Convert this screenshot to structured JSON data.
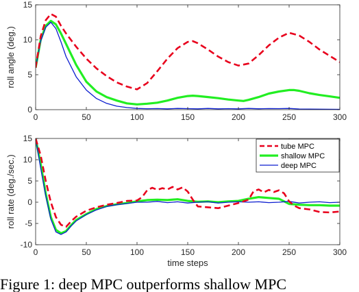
{
  "caption": "Figure 1: deep MPC outperforms shallow MPC",
  "colors": {
    "tube": "#e8001c",
    "shallow": "#22ee22",
    "deep": "#0a1ccf",
    "axis": "#262626"
  },
  "chart_data": [
    {
      "type": "line",
      "xlabel": "",
      "ylabel": "roll angle (deg.)",
      "xlim": [
        0,
        300
      ],
      "ylim": [
        0,
        15
      ],
      "xticks": [
        0,
        50,
        100,
        150,
        200,
        250,
        300
      ],
      "yticks": [
        0,
        5,
        10,
        15
      ],
      "grid": false,
      "series": [
        {
          "name": "tube MPC",
          "style": "dashed",
          "x": [
            0,
            5,
            10,
            15,
            20,
            25,
            30,
            40,
            50,
            60,
            70,
            80,
            90,
            100,
            110,
            120,
            130,
            140,
            150,
            155,
            160,
            170,
            180,
            190,
            200,
            210,
            220,
            230,
            240,
            250,
            260,
            270,
            280,
            290,
            300
          ],
          "y": [
            6.0,
            10.5,
            12.8,
            13.7,
            13.3,
            12.0,
            10.9,
            9.0,
            7.3,
            5.9,
            4.8,
            3.9,
            3.3,
            2.9,
            3.8,
            5.5,
            7.3,
            8.8,
            9.7,
            9.8,
            9.5,
            8.6,
            7.6,
            6.8,
            6.3,
            6.6,
            7.8,
            9.2,
            10.3,
            11.0,
            10.6,
            9.7,
            8.6,
            7.7,
            6.8
          ]
        },
        {
          "name": "shallow MPC",
          "style": "thick",
          "x": [
            0,
            5,
            10,
            15,
            20,
            25,
            30,
            40,
            50,
            60,
            70,
            80,
            90,
            100,
            110,
            120,
            130,
            140,
            150,
            155,
            160,
            170,
            180,
            190,
            200,
            205,
            210,
            220,
            230,
            240,
            250,
            255,
            260,
            270,
            280,
            290,
            300
          ],
          "y": [
            6.0,
            10.0,
            12.0,
            12.7,
            12.2,
            10.9,
            9.4,
            6.4,
            4.0,
            2.6,
            1.8,
            1.3,
            0.9,
            0.75,
            0.85,
            1.0,
            1.3,
            1.7,
            1.95,
            2.0,
            1.95,
            1.8,
            1.65,
            1.45,
            1.3,
            1.25,
            1.4,
            1.8,
            2.3,
            2.6,
            2.8,
            2.8,
            2.7,
            2.35,
            2.1,
            1.9,
            1.7
          ]
        },
        {
          "name": "deep MPC",
          "style": "solid",
          "x": [
            0,
            5,
            10,
            15,
            20,
            25,
            30,
            40,
            50,
            60,
            70,
            80,
            90,
            100,
            110,
            120,
            130,
            140,
            150,
            160,
            170,
            180,
            190,
            200,
            210,
            220,
            230,
            240,
            250,
            260,
            270,
            280,
            290,
            300
          ],
          "y": [
            6.0,
            9.8,
            11.8,
            12.5,
            11.6,
            9.7,
            7.6,
            4.7,
            2.8,
            1.6,
            0.9,
            0.5,
            0.3,
            0.18,
            0.14,
            0.16,
            0.12,
            0.18,
            0.15,
            0.12,
            0.18,
            0.12,
            0.15,
            0.12,
            0.18,
            0.13,
            0.16,
            0.15,
            0.18,
            0.1,
            0.08,
            0.07,
            0.06,
            0.05
          ]
        }
      ]
    },
    {
      "type": "line",
      "xlabel": "time steps",
      "ylabel": "roll rate (deg./sec.)",
      "xlim": [
        0,
        300
      ],
      "ylim": [
        -10,
        15
      ],
      "xticks": [
        0,
        50,
        100,
        150,
        200,
        250,
        300
      ],
      "yticks": [
        -10,
        -5,
        0,
        5,
        10,
        15
      ],
      "grid": false,
      "legend": "top-right",
      "series": [
        {
          "name": "tube MPC",
          "style": "dashed",
          "x": [
            0,
            5,
            10,
            15,
            20,
            25,
            30,
            35,
            40,
            50,
            60,
            70,
            80,
            90,
            100,
            105,
            110,
            115,
            120,
            125,
            130,
            135,
            140,
            145,
            150,
            155,
            160,
            170,
            180,
            190,
            200,
            210,
            215,
            220,
            225,
            230,
            235,
            240,
            245,
            250,
            255,
            260,
            270,
            280,
            290,
            300
          ],
          "y": [
            15,
            11,
            5,
            0,
            -3.5,
            -5.3,
            -5.8,
            -4.5,
            -3.4,
            -2.0,
            -1.2,
            -0.6,
            -0.2,
            0.3,
            0.4,
            1.2,
            2.8,
            3.4,
            2.9,
            3.3,
            3.0,
            3.6,
            3.0,
            3.5,
            2.5,
            0.6,
            -1.0,
            -1.2,
            -1.4,
            -0.8,
            -0.2,
            0.6,
            2.6,
            3.0,
            2.3,
            2.9,
            2.4,
            2.8,
            2.1,
            0.2,
            -0.8,
            -1.4,
            -1.7,
            -2.3,
            -2.4,
            -2.2
          ]
        },
        {
          "name": "shallow MPC",
          "style": "thick",
          "x": [
            0,
            5,
            10,
            15,
            20,
            25,
            30,
            35,
            40,
            50,
            60,
            70,
            80,
            90,
            100,
            110,
            120,
            130,
            140,
            150,
            160,
            170,
            180,
            190,
            200,
            210,
            220,
            230,
            240,
            250,
            260,
            270,
            280,
            290,
            300
          ],
          "y": [
            15,
            9,
            2,
            -3.5,
            -6.5,
            -7.3,
            -6.8,
            -5.4,
            -4.2,
            -2.8,
            -1.6,
            -0.9,
            -0.5,
            -0.2,
            0.2,
            0.5,
            0.6,
            0.5,
            0.7,
            0.3,
            0.1,
            0.2,
            0.0,
            0.2,
            0.3,
            0.8,
            1.2,
            1.0,
            0.8,
            -0.4,
            -0.6,
            -0.7,
            -0.7,
            -0.8,
            -0.8
          ]
        },
        {
          "name": "deep MPC",
          "style": "solid",
          "x": [
            0,
            5,
            10,
            15,
            20,
            25,
            30,
            35,
            40,
            50,
            60,
            70,
            80,
            90,
            100,
            110,
            120,
            130,
            140,
            150,
            160,
            170,
            180,
            190,
            200,
            210,
            220,
            230,
            240,
            250,
            260,
            270,
            280,
            290,
            300
          ],
          "y": [
            15,
            8,
            1.5,
            -4.0,
            -7.0,
            -7.6,
            -7.0,
            -5.6,
            -4.4,
            -2.9,
            -1.8,
            -1.0,
            -0.6,
            -0.3,
            0.0,
            0.0,
            0.2,
            -0.1,
            0.1,
            -0.2,
            0.0,
            0.1,
            -0.2,
            0.0,
            0.1,
            0.0,
            0.1,
            -0.1,
            0.0,
            0.2,
            -0.2,
            0.0,
            0.1,
            -0.1,
            0.0
          ]
        }
      ]
    }
  ]
}
